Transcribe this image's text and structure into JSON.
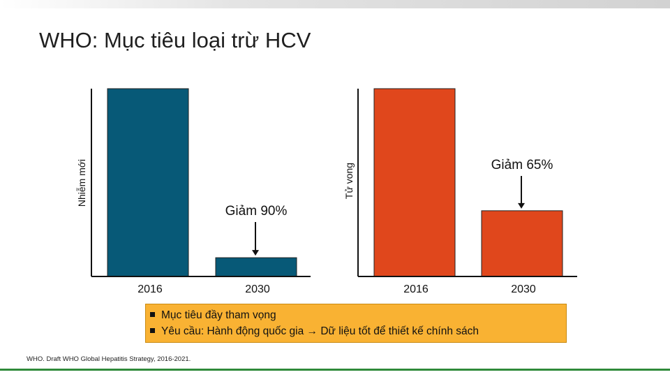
{
  "title": "WHO: Mục tiêu loại trừ HCV",
  "colors": {
    "infections": "#075977",
    "deaths": "#e0471c",
    "callout": "#f9b233",
    "footer_line": "#2f8a3a"
  },
  "chart_data": [
    {
      "type": "bar",
      "ylabel": "Nhiễm mới",
      "categories": [
        "2016",
        "2030"
      ],
      "values": [
        100,
        10
      ],
      "annotation": "Giảm 90%"
    },
    {
      "type": "bar",
      "ylabel": "Tử vong",
      "categories": [
        "2016",
        "2030"
      ],
      "values": [
        100,
        35
      ],
      "annotation": "Giảm 65%"
    }
  ],
  "callout": {
    "items": [
      "Mục tiêu đầy tham vọng",
      "Yêu cầu: Hành động quốc gia → Dữ liệu tốt để thiết kế chính sách"
    ]
  },
  "source": "WHO. Draft WHO Global Hepatitis Strategy, 2016-2021."
}
